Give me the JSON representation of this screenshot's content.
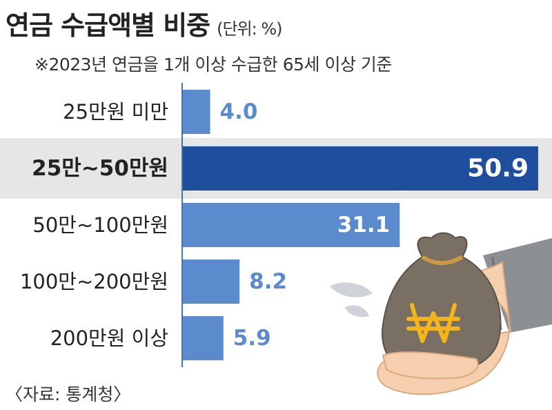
{
  "title": "연금 수급액별 비중",
  "unit": "(단위: %)",
  "subtitle": "※2023년 연금을 1개 이상 수급한 65세 이상 기준",
  "source": "〈자료: 통계청〉",
  "colors": {
    "bar": "#5b8bcc",
    "highlight_bar": "#1f4e9d",
    "highlight_band": "#e6e6e6",
    "value_text": "#5b8bcc",
    "value_text_inside": "#ffffff",
    "axis": "#4472b4"
  },
  "illustration": "hand-holding-won-money-bag",
  "chart_data": {
    "type": "bar",
    "orientation": "horizontal",
    "categories": [
      "25만원 미만",
      "25만~50만원",
      "50만~100만원",
      "100만~200만원",
      "200만원 이상"
    ],
    "values": [
      4.0,
      50.9,
      31.1,
      8.2,
      5.9
    ],
    "value_labels": [
      "4.0",
      "50.9",
      "31.1",
      "8.2",
      "5.9"
    ],
    "highlight_index": 1,
    "xlim": [
      0,
      50.9
    ],
    "grid": false,
    "legend": "none"
  }
}
